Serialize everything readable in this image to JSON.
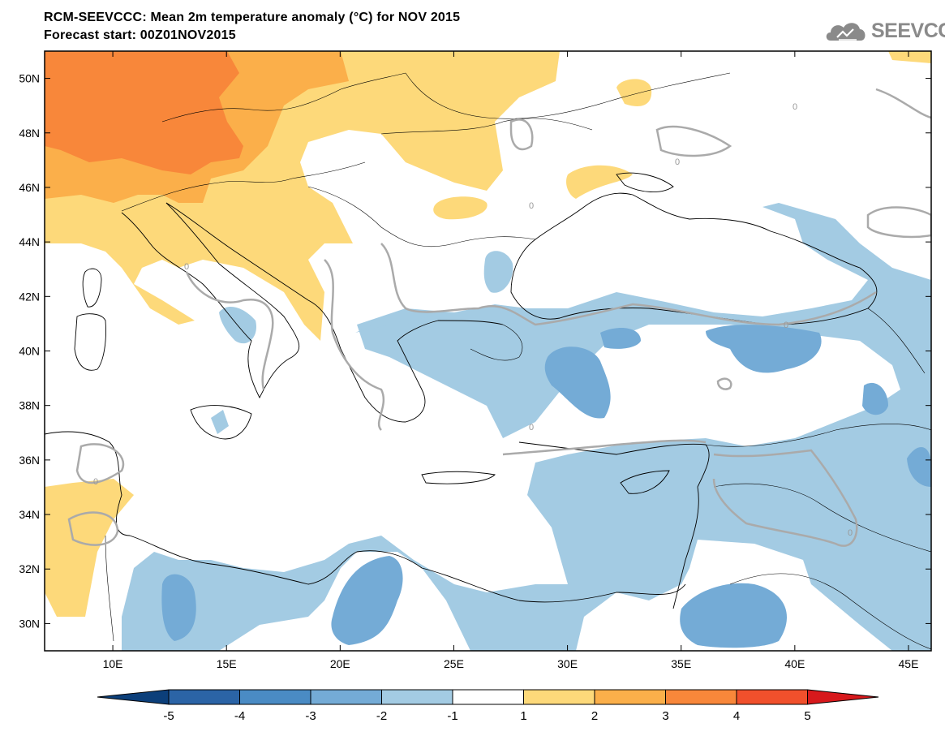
{
  "title": {
    "line1": "RCM-SEEVCCC: Mean 2m temperature anomaly (°C) for NOV 2015",
    "line2": "Forecast start: 00Z01NOV2015"
  },
  "logo": {
    "text": "SEEVCCC",
    "icon": "cloud-icon",
    "color": "#8a8a8a"
  },
  "map": {
    "lon_range": [
      7,
      46
    ],
    "lat_range": [
      29,
      51
    ],
    "lon_ticks": [
      {
        "value": 10,
        "label": "10E"
      },
      {
        "value": 15,
        "label": "15E"
      },
      {
        "value": 20,
        "label": "20E"
      },
      {
        "value": 25,
        "label": "25E"
      },
      {
        "value": 30,
        "label": "30E"
      },
      {
        "value": 35,
        "label": "35E"
      },
      {
        "value": 40,
        "label": "40E"
      },
      {
        "value": 45,
        "label": "45E"
      }
    ],
    "lat_ticks": [
      {
        "value": 50,
        "label": "50N"
      },
      {
        "value": 48,
        "label": "48N"
      },
      {
        "value": 46,
        "label": "46N"
      },
      {
        "value": 44,
        "label": "44N"
      },
      {
        "value": 42,
        "label": "42N"
      },
      {
        "value": 40,
        "label": "40N"
      },
      {
        "value": 38,
        "label": "38N"
      },
      {
        "value": 36,
        "label": "36N"
      },
      {
        "value": 34,
        "label": "34N"
      },
      {
        "value": 32,
        "label": "32N"
      },
      {
        "value": 30,
        "label": "30N"
      }
    ],
    "contour_label": "0"
  },
  "colorbar": {
    "ticks": [
      "-5",
      "-4",
      "-3",
      "-2",
      "-1",
      "1",
      "2",
      "3",
      "4",
      "5"
    ],
    "colors": [
      "#0c3f7a",
      "#2b64a6",
      "#4a8bc4",
      "#74abd6",
      "#a3cbe3",
      "#ffffff",
      "#fdd97a",
      "#fbaf4a",
      "#f8873a",
      "#f1502c",
      "#d7191c"
    ]
  },
  "colors": {
    "warm1": "#fdd97a",
    "warm2": "#fbaf4a",
    "warm3": "#f8873a",
    "cool1": "#a3cbe3",
    "cool2": "#74abd6",
    "contour": "#aaaaaa"
  }
}
